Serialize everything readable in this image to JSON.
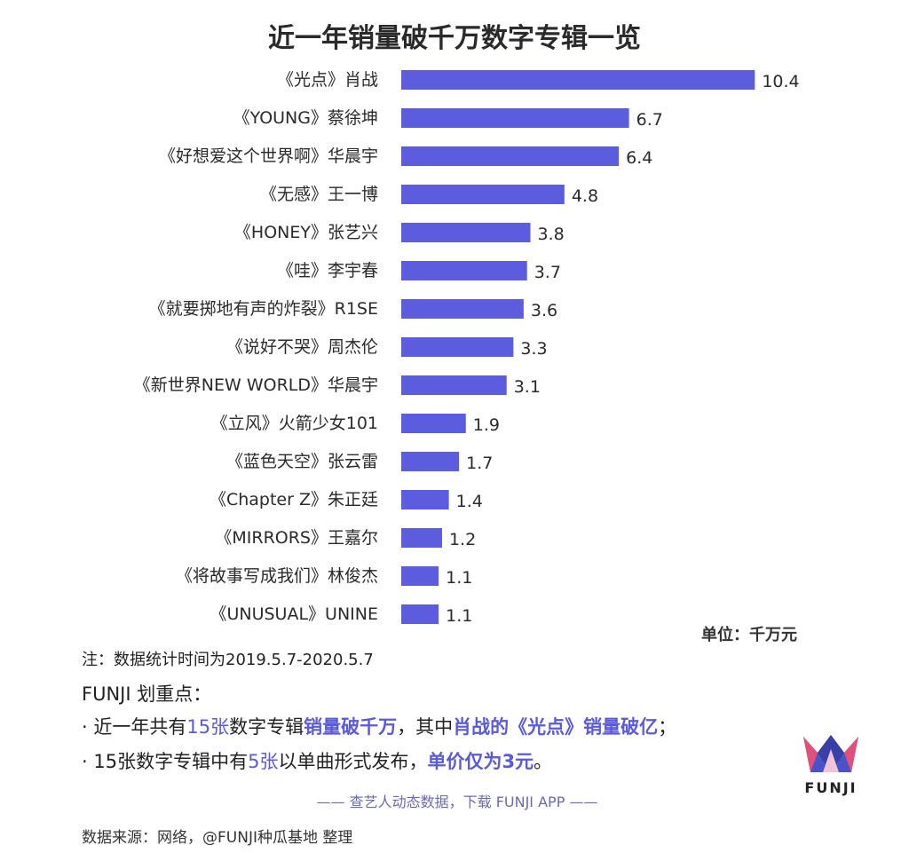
{
  "title": "近一年销量破千万数字专辑一览",
  "unit_label": "单位：千万元",
  "note": "注：数据统计时间为2019.5.7-2020.5.7",
  "funji_heading": "FUNJI 划重点：",
  "bullet1": {
    "p1": "· 近一年共有",
    "p2": "15张",
    "p3": "数字专辑",
    "p4": "销量破千万",
    "p5": "，其中",
    "p6": "肖战的《光点》销量破亿",
    "p7": "；"
  },
  "bullet2": {
    "p1": "· 15张数字专辑中有",
    "p2": "5张",
    "p3": "以单曲形式发布，",
    "p4": "单价仅为3元",
    "p5": "。"
  },
  "promo": "—— 查艺人动态数据，下载 FUNJI APP ——",
  "source": "数据来源：网络，@FUNJI种瓜基地 整理",
  "logo_text": "FUNJI",
  "colors": {
    "bar": "#5c5cde",
    "highlight": "#5a5adc"
  },
  "chart_data": {
    "type": "bar",
    "orientation": "horizontal",
    "title": "近一年销量破千万数字专辑一览",
    "categories": [
      "《光点》肖战",
      "《YOUNG》蔡徐坤",
      "《好想爱这个世界啊》华晨宇",
      "《无感》王一博",
      "《HONEY》张艺兴",
      "《哇》李宇春",
      "《就要掷地有声的炸裂》R1SE",
      "《说好不哭》周杰伦",
      "《新世界NEW WORLD》华晨宇",
      "《立风》火箭少女101",
      "《蓝色天空》张云雷",
      "《Chapter Z》朱正廷",
      "《MIRRORS》王嘉尔",
      "《将故事写成我们》林俊杰",
      "《UNUSUAL》UNINE"
    ],
    "values": [
      10.4,
      6.7,
      6.4,
      4.8,
      3.8,
      3.7,
      3.6,
      3.3,
      3.1,
      1.9,
      1.7,
      1.4,
      1.2,
      1.1,
      1.1
    ],
    "value_labels": [
      "10.4",
      "6.7",
      "6.4",
      "4.8",
      "3.8",
      "3.7",
      "3.6",
      "3.3",
      "3.1",
      "1.9",
      "1.7",
      "1.4",
      "1.2",
      "1.1",
      "1.1"
    ],
    "unit": "千万元",
    "grid": false,
    "legend": "none"
  }
}
